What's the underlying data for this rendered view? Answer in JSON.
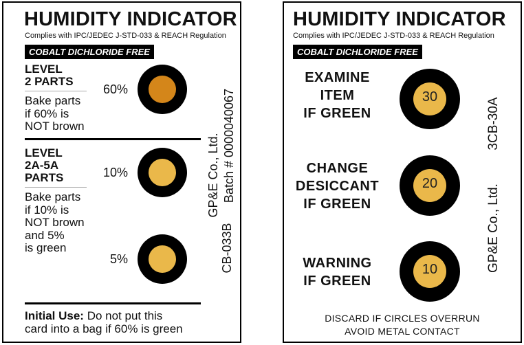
{
  "card1": {
    "title": "HUMIDITY INDICATOR",
    "compliance": "Complies with IPC/JEDEC J-STD-033 & REACH Regulation",
    "banner": "COBALT DICHLORIDE FREE",
    "section1": {
      "level_line1": "LEVEL",
      "level_line2": "2 PARTS",
      "desc_lines": [
        "Bake parts",
        "if 60% is",
        "NOT brown"
      ],
      "spot_label": "60%",
      "spot_color": "#d4861a"
    },
    "section2": {
      "level_line1": "LEVEL",
      "level_line2": "2A-5A",
      "level_line3": "PARTS",
      "desc_lines": [
        "Bake parts",
        "if 10% is",
        "NOT brown",
        "and 5%",
        "is green"
      ],
      "spot1_label": "10%",
      "spot2_label": "5%",
      "spot_color": "#eab84a"
    },
    "footer": {
      "bold_text": "Initial Use:",
      "text_line1": " Do not put this",
      "text_line2": "card into a bag if 60% is green"
    },
    "vertical_company": "GP&E Co., Ltd.",
    "vertical_batch": "Batch # 0000040067",
    "vertical_code": "CB-033B"
  },
  "card2": {
    "title": "HUMIDITY INDICATOR",
    "compliance": "Complies with IPC/JEDEC J-STD-033 & REACH Regulation",
    "banner": "COBALT DICHLORIDE FREE",
    "spots": [
      {
        "lines": [
          "EXAMINE",
          "ITEM",
          "IF GREEN"
        ],
        "value": "30"
      },
      {
        "lines": [
          "CHANGE",
          "DESICCANT",
          "IF GREEN"
        ],
        "value": "20"
      },
      {
        "lines": [
          "WARNING",
          "IF GREEN"
        ],
        "value": "10"
      }
    ],
    "spot_color": "#eab84a",
    "vertical_code": "3CB-30A",
    "vertical_company": "GP&E Co., Ltd.",
    "bottom_line1": "DISCARD IF CIRCLES OVERRUN",
    "bottom_line2": "AVOID METAL CONTACT"
  }
}
